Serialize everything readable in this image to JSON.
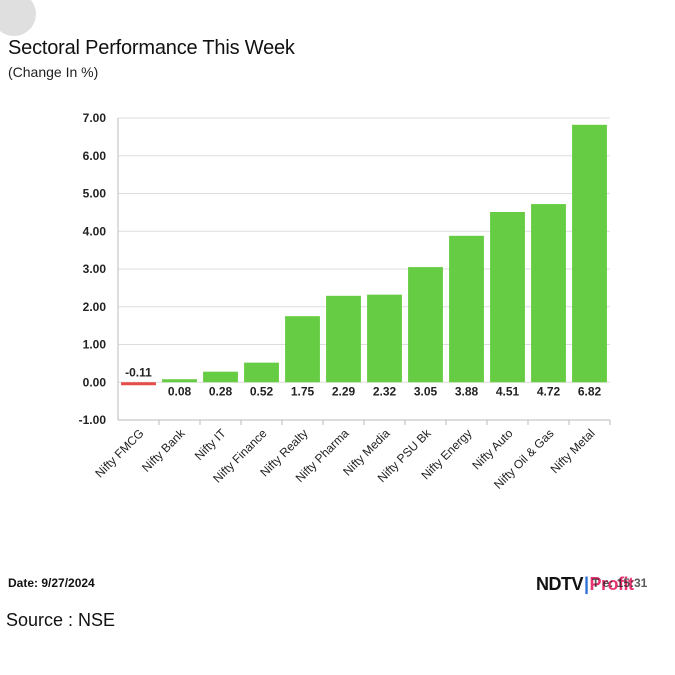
{
  "header": {
    "title": "Sectoral Performance This Week",
    "subtitle": "(Change In %)"
  },
  "footer": {
    "date": "Date: 9/27/2024",
    "source": "Source : NSE",
    "brand_ndtv": "NDTV",
    "brand_bar": "|",
    "brand_profit": "Profit",
    "time_fragment": "T  e: 15:31"
  },
  "colors": {
    "positive": "#66cc44",
    "negative": "#e84a4a",
    "grid": "#dddddd",
    "axis": "#bbbbbb"
  },
  "chart_data": {
    "type": "bar",
    "title": "Sectoral Performance This Week",
    "subtitle": "(Change In %)",
    "xlabel": "",
    "ylabel": "",
    "ylim": [
      -1.0,
      7.0
    ],
    "yticks": [
      7.0,
      6.0,
      5.0,
      4.0,
      3.0,
      2.0,
      1.0,
      0.0,
      -1.0
    ],
    "ytick_labels": [
      "7.00",
      "6.00",
      "5.00",
      "4.00",
      "3.00",
      "2.00",
      "1.00",
      "0.00",
      "-1.00"
    ],
    "grid": true,
    "categories": [
      "Nifty FMCG",
      "Nifty Bank",
      "Nifty IT",
      "Nifty Finance",
      "Nifty Realty",
      "Nifty Pharma",
      "Nifty Media",
      "Nifty PSU Bk",
      "Nifty Energy",
      "Nifty Auto",
      "Nifty Oil & Gas",
      "Nifty Metal"
    ],
    "values": [
      -0.11,
      0.08,
      0.28,
      0.52,
      1.75,
      2.29,
      2.32,
      3.05,
      3.88,
      4.51,
      4.72,
      6.82
    ],
    "data_labels": [
      "-0.11",
      "0.08",
      "0.28",
      "0.52",
      "1.75",
      "2.29",
      "2.32",
      "3.05",
      "3.88",
      "4.51",
      "4.72",
      "6.82"
    ]
  }
}
